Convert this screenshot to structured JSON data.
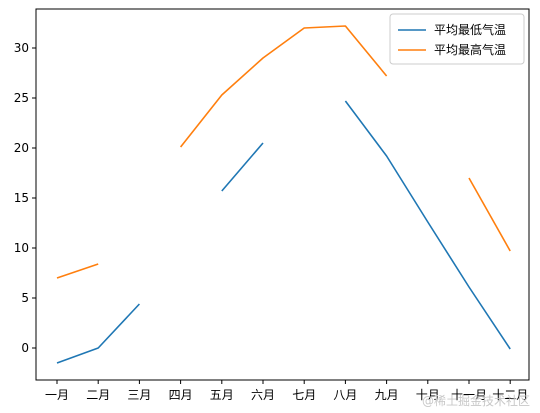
{
  "chart_data": {
    "type": "line",
    "categories": [
      "一月",
      "二月",
      "三月",
      "四月",
      "五月",
      "六月",
      "七月",
      "八月",
      "九月",
      "十月",
      "十一月",
      "十二月"
    ],
    "series": [
      {
        "name": "平均最低气温",
        "color": "#1f77b4",
        "values": [
          -1.5,
          0.0,
          4.4,
          null,
          15.7,
          20.5,
          null,
          24.7,
          19.2,
          12.6,
          6.1,
          -0.1
        ]
      },
      {
        "name": "平均最高气温",
        "color": "#ff7f0e",
        "values": [
          7.0,
          8.4,
          null,
          20.1,
          25.3,
          29.0,
          32.0,
          32.2,
          27.2,
          null,
          17.0,
          9.7
        ]
      }
    ],
    "ylim": [
      -3.2,
      33.9
    ],
    "yticks": [
      0,
      5,
      10,
      15,
      20,
      25,
      30
    ],
    "grid": false,
    "legend_position": "top-right"
  },
  "watermark": "@稀土掘金技术社区"
}
